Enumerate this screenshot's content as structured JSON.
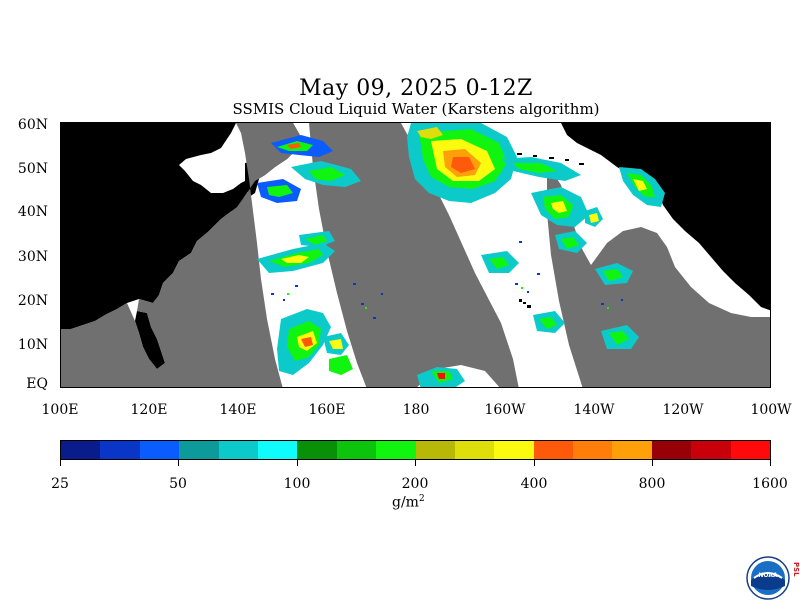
{
  "title": "May 09, 2025 0-12Z",
  "subtitle": "SSMIS Cloud Liquid Water (Karstens algorithm)",
  "latitude_labels": [
    "60N",
    "50N",
    "40N",
    "30N",
    "20N",
    "10N",
    "EQ"
  ],
  "longitude_labels": [
    "100E",
    "120E",
    "140E",
    "160E",
    "180",
    "160W",
    "140W",
    "120W",
    "100W"
  ],
  "colorbar": {
    "units_text": "g/m",
    "units_exponent": "2",
    "tick_labels": [
      "25",
      "50",
      "100",
      "200",
      "400",
      "800",
      "1600"
    ],
    "colors": [
      "#0a1c8c",
      "#0a36c8",
      "#0a5cff",
      "#0c9a9a",
      "#0ccaca",
      "#10fbfb",
      "#089008",
      "#0cc40c",
      "#10f410",
      "#b8b808",
      "#dede0a",
      "#fbfb10",
      "#ff5a0a",
      "#ff7e0a",
      "#ffa00a",
      "#980008",
      "#c8000a",
      "#ff0a0a"
    ]
  },
  "map": {
    "lat_range": [
      0,
      60
    ],
    "lon_range": [
      "100E",
      "100W"
    ],
    "land_color": "#000000",
    "no_data_color": "#707070",
    "clear_color": "#ffffff"
  },
  "logo": {
    "noaa_text": "NOAA",
    "psl_text": "PSL"
  }
}
